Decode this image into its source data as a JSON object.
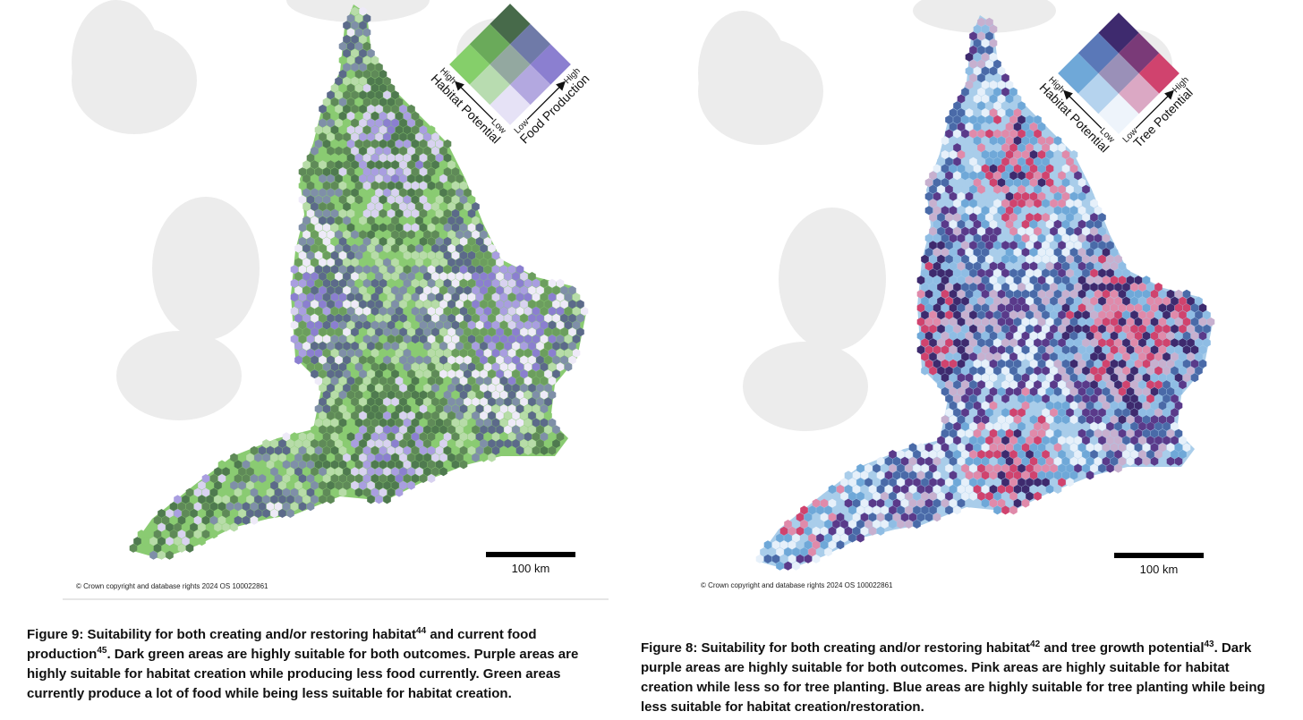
{
  "figures": [
    {
      "legend": {
        "high_left": "High",
        "low_left": "Low",
        "axis_left": "Habitat Potential",
        "high_right": "High",
        "low_right": "Low",
        "axis_right": "Food Production"
      },
      "scale_label": "100 km",
      "copyright": "© Crown copyright and database rights 2024 OS 100022861",
      "caption": [
        "Figure 9: Suitability for both creating and/or restoring habitat",
        "44",
        " and current food production",
        "45",
        ". Dark green areas are highly suitable for both outcomes. Purple areas are highly suitable for habitat creation while producing less food currently. Green areas currently produce a lot of food while being less suitable for habitat creation."
      ]
    },
    {
      "legend": {
        "high_left": "High",
        "low_left": "Low",
        "axis_left": "Habitat Potential",
        "high_right": "High",
        "low_right": "Low",
        "axis_right": "Tree Potential"
      },
      "scale_label": "100 km",
      "copyright": "© Crown copyright and database rights 2024 OS 100022861",
      "caption": [
        "Figure 8: Suitability for both creating and/or restoring habitat",
        "42",
        " and tree growth potential",
        "43",
        ". Dark purple areas are highly suitable for both outcomes. Pink areas are highly suitable for habitat creation while less so for tree planting. Blue areas are highly suitable for tree planting while being less suitable for habitat creation/restoration."
      ]
    }
  ]
}
